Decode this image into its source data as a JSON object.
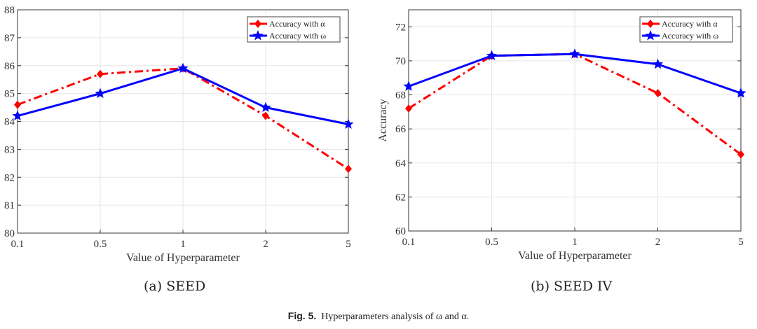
{
  "chart_data": [
    {
      "type": "line",
      "title": "(a) SEED",
      "xlabel": "Value of Hyperparameter",
      "ylabel": "",
      "categories": [
        "0.1",
        "0.5",
        "1",
        "2",
        "5"
      ],
      "ylim": [
        80,
        88
      ],
      "yticks": [
        "80",
        "81",
        "82",
        "83",
        "84",
        "85",
        "86",
        "87",
        "88"
      ],
      "grid": true,
      "legend": "top-right",
      "series": [
        {
          "name": "Accuracy with α",
          "color": "#ff0000",
          "style": "dash-dot",
          "marker": "diamond",
          "values": [
            84.6,
            85.7,
            85.9,
            84.2,
            82.3
          ]
        },
        {
          "name": "Accuracy with ω",
          "color": "#0000ff",
          "style": "solid",
          "marker": "star",
          "values": [
            84.2,
            85.0,
            85.9,
            84.5,
            83.9
          ]
        }
      ]
    },
    {
      "type": "line",
      "title": "(b) SEED IV",
      "xlabel": "Value of Hyperparameter",
      "ylabel": "Accuracy",
      "categories": [
        "0.1",
        "0.5",
        "1",
        "2",
        "5"
      ],
      "ylim": [
        60,
        73
      ],
      "yticks": [
        "60",
        "62",
        "64",
        "66",
        "68",
        "70",
        "72"
      ],
      "grid": true,
      "legend": "top-right",
      "series": [
        {
          "name": "Accuracy with α",
          "color": "#ff0000",
          "style": "dash-dot",
          "marker": "diamond",
          "values": [
            67.2,
            70.3,
            70.4,
            68.1,
            64.5
          ]
        },
        {
          "name": "Accuracy with ω",
          "color": "#0000ff",
          "style": "solid",
          "marker": "star",
          "values": [
            68.5,
            70.3,
            70.4,
            69.8,
            68.1
          ]
        }
      ]
    }
  ],
  "caption": {
    "label": "Fig. 5.",
    "text": "Hyperparameters analysis of ω and α."
  }
}
